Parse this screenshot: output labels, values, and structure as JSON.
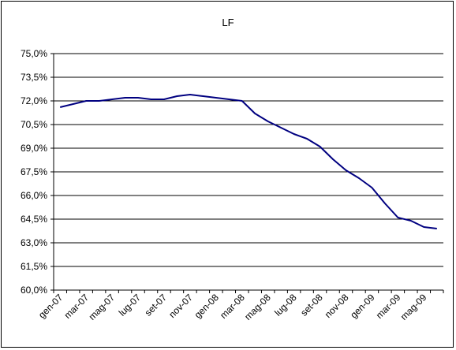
{
  "chart_data": {
    "type": "line",
    "title": "LF",
    "xlabel": "",
    "ylabel": "",
    "ylim": [
      60.0,
      75.0
    ],
    "yticks": [
      "75,0%",
      "73,5%",
      "72,0%",
      "70,5%",
      "69,0%",
      "67,5%",
      "66,0%",
      "64,5%",
      "63,0%",
      "61,5%",
      "60,0%"
    ],
    "ytick_values": [
      75.0,
      73.5,
      72.0,
      70.5,
      69.0,
      67.5,
      66.0,
      64.5,
      63.0,
      61.5,
      60.0
    ],
    "categories": [
      "gen-07",
      "mar-07",
      "mag-07",
      "lug-07",
      "set-07",
      "nov-07",
      "gen-08",
      "mar-08",
      "mag-08",
      "lug-08",
      "set-08",
      "nov-08",
      "gen-09",
      "mar-09",
      "mag-09"
    ],
    "x": [
      "gen-07",
      "feb-07",
      "mar-07",
      "apr-07",
      "mag-07",
      "giu-07",
      "lug-07",
      "ago-07",
      "set-07",
      "ott-07",
      "nov-07",
      "dic-07",
      "gen-08",
      "feb-08",
      "mar-08",
      "apr-08",
      "mag-08",
      "giu-08",
      "lug-08",
      "ago-08",
      "set-08",
      "ott-08",
      "nov-08",
      "dic-08",
      "gen-09",
      "feb-09",
      "mar-09",
      "apr-09",
      "mag-09",
      "giu-09"
    ],
    "series": [
      {
        "values": [
          71.6,
          71.8,
          72.0,
          72.0,
          72.1,
          72.2,
          72.2,
          72.1,
          72.1,
          72.3,
          72.4,
          72.3,
          72.2,
          72.1,
          72.0,
          71.2,
          70.7,
          70.3,
          69.9,
          69.6,
          69.1,
          68.3,
          67.6,
          67.1,
          66.5,
          65.5,
          64.6,
          64.4,
          64.0,
          63.9
        ]
      }
    ],
    "grid": true,
    "legend": "none",
    "line_color": "#000080"
  }
}
